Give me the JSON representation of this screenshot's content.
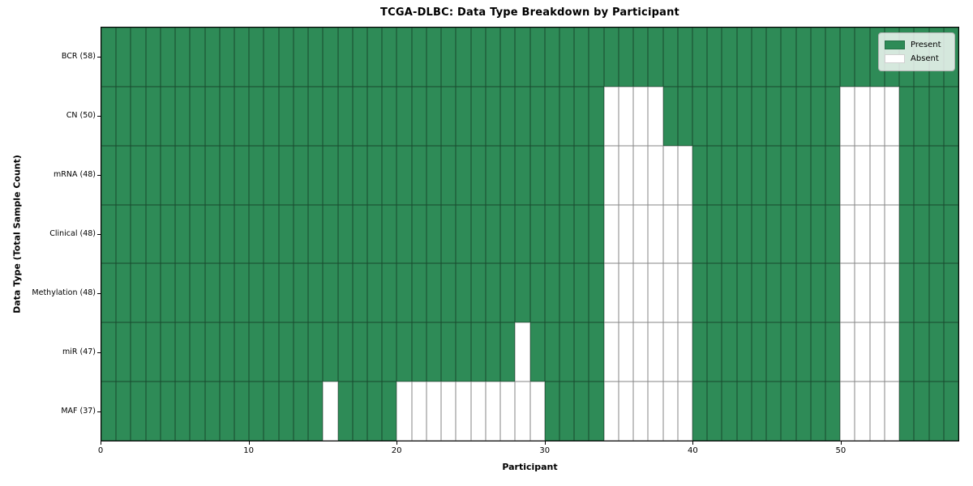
{
  "chart_data": {
    "type": "heatmap",
    "title": "TCGA-DLBC: Data Type Breakdown by Participant",
    "xlabel": "Participant",
    "ylabel": "Data Type (Total Sample Count)",
    "n_participants": 58,
    "x_range": [
      0,
      58
    ],
    "x_ticks": [
      0,
      10,
      20,
      30,
      40,
      50
    ],
    "grid": "cell borders on, thin black",
    "legend_position": "upper right",
    "rows": [
      {
        "label": "BCR (58)",
        "data_type": "BCR",
        "total": 58,
        "absent_participants": []
      },
      {
        "label": "CN (50)",
        "data_type": "CN",
        "total": 50,
        "absent_participants": [
          34,
          35,
          36,
          37,
          50,
          51,
          52,
          53
        ]
      },
      {
        "label": "mRNA (48)",
        "data_type": "mRNA",
        "total": 48,
        "absent_participants": [
          34,
          35,
          36,
          37,
          38,
          39,
          50,
          51,
          52,
          53
        ]
      },
      {
        "label": "Clinical (48)",
        "data_type": "Clinical",
        "total": 48,
        "absent_participants": [
          34,
          35,
          36,
          37,
          38,
          39,
          50,
          51,
          52,
          53
        ]
      },
      {
        "label": "Methylation (48)",
        "data_type": "Methylation",
        "total": 48,
        "absent_participants": [
          34,
          35,
          36,
          37,
          38,
          39,
          50,
          51,
          52,
          53
        ]
      },
      {
        "label": "miR (47)",
        "data_type": "miR",
        "total": 47,
        "absent_participants": [
          28,
          34,
          35,
          36,
          37,
          38,
          39,
          50,
          51,
          52,
          53
        ]
      },
      {
        "label": "MAF (37)",
        "data_type": "MAF",
        "total": 37,
        "absent_participants": [
          15,
          20,
          21,
          22,
          23,
          24,
          25,
          26,
          27,
          28,
          29,
          34,
          35,
          36,
          37,
          38,
          39,
          50,
          51,
          52,
          53
        ]
      }
    ],
    "legend": [
      {
        "label": "Present",
        "color": "#2e8b57"
      },
      {
        "label": "Absent",
        "color": "#ffffff"
      }
    ],
    "colors": {
      "present": "#2e8b57",
      "absent": "#ffffff",
      "cell_edge": "rgba(0,0,0,0.48)",
      "frame": "#000000",
      "legend_bg": "rgba(255,255,255,0.8)",
      "legend_border": "#b3b3b3",
      "text": "#000000"
    }
  }
}
